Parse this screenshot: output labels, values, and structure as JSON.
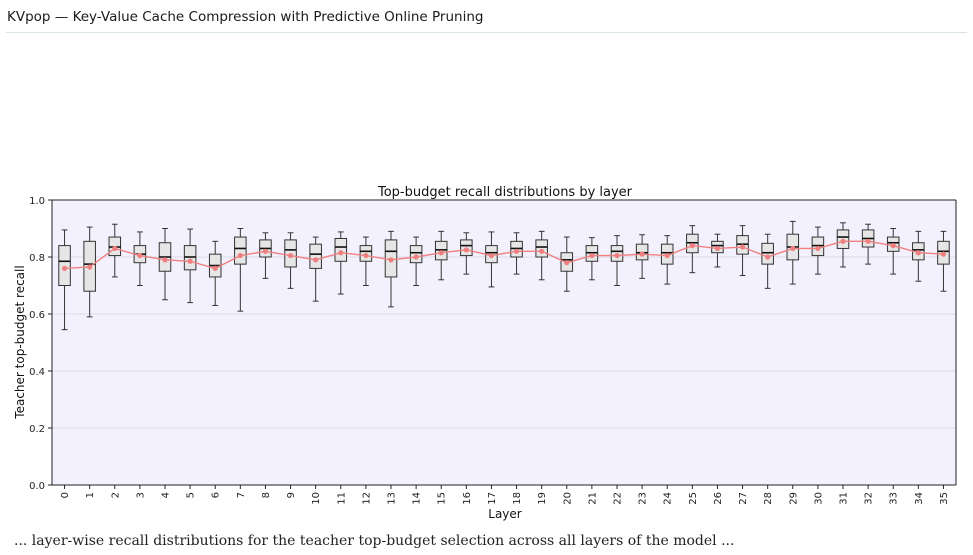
{
  "header": {
    "title": "KVpop — Key-Value Cache Compression with Predictive Online Pruning"
  },
  "footer": {
    "text": "... layer-wise recall distributions for the teacher top-budget selection across all layers of the model ..."
  },
  "colors": {
    "plot_background": "#f3f1fd",
    "box_fill": "#e6e6e6",
    "box_stroke": "#333333",
    "median": "#111111",
    "mean_line": "#f08080",
    "mean_marker": "#f08080",
    "grid": "#dddbe8"
  },
  "chart_data": {
    "type": "box",
    "title": "Top-budget recall distributions by layer",
    "xlabel": "Layer",
    "ylabel": "Teacher top-budget recall",
    "ylim": [
      0.0,
      1.0
    ],
    "yticks": [
      "0.0",
      "0.2",
      "0.4",
      "0.6",
      "0.8",
      "1.0"
    ],
    "grid": "horizontal",
    "categories": [
      "0",
      "1",
      "2",
      "3",
      "4",
      "5",
      "6",
      "7",
      "8",
      "9",
      "10",
      "11",
      "12",
      "13",
      "14",
      "15",
      "16",
      "17",
      "18",
      "19",
      "20",
      "21",
      "22",
      "23",
      "24",
      "25",
      "26",
      "27",
      "28",
      "29",
      "30",
      "31",
      "32",
      "33",
      "34",
      "35"
    ],
    "boxes": [
      {
        "whislo": 0.545,
        "q1": 0.7,
        "med": 0.785,
        "q3": 0.84,
        "whishi": 0.895,
        "mean": 0.76
      },
      {
        "whislo": 0.59,
        "q1": 0.68,
        "med": 0.775,
        "q3": 0.855,
        "whishi": 0.905,
        "mean": 0.765
      },
      {
        "whislo": 0.73,
        "q1": 0.805,
        "med": 0.835,
        "q3": 0.87,
        "whishi": 0.915,
        "mean": 0.83
      },
      {
        "whislo": 0.7,
        "q1": 0.78,
        "med": 0.81,
        "q3": 0.84,
        "whishi": 0.888,
        "mean": 0.805
      },
      {
        "whislo": 0.65,
        "q1": 0.75,
        "med": 0.8,
        "q3": 0.85,
        "whishi": 0.9,
        "mean": 0.79
      },
      {
        "whislo": 0.64,
        "q1": 0.755,
        "med": 0.8,
        "q3": 0.84,
        "whishi": 0.898,
        "mean": 0.785
      },
      {
        "whislo": 0.63,
        "q1": 0.73,
        "med": 0.77,
        "q3": 0.81,
        "whishi": 0.855,
        "mean": 0.76
      },
      {
        "whislo": 0.61,
        "q1": 0.775,
        "med": 0.83,
        "q3": 0.87,
        "whishi": 0.9,
        "mean": 0.805
      },
      {
        "whislo": 0.725,
        "q1": 0.8,
        "med": 0.83,
        "q3": 0.86,
        "whishi": 0.885,
        "mean": 0.82
      },
      {
        "whislo": 0.69,
        "q1": 0.765,
        "med": 0.825,
        "q3": 0.86,
        "whishi": 0.885,
        "mean": 0.805
      },
      {
        "whislo": 0.645,
        "q1": 0.76,
        "med": 0.81,
        "q3": 0.845,
        "whishi": 0.87,
        "mean": 0.79
      },
      {
        "whislo": 0.67,
        "q1": 0.785,
        "med": 0.835,
        "q3": 0.865,
        "whishi": 0.888,
        "mean": 0.815
      },
      {
        "whislo": 0.7,
        "q1": 0.785,
        "med": 0.82,
        "q3": 0.84,
        "whishi": 0.87,
        "mean": 0.805
      },
      {
        "whislo": 0.625,
        "q1": 0.73,
        "med": 0.82,
        "q3": 0.86,
        "whishi": 0.89,
        "mean": 0.79
      },
      {
        "whislo": 0.7,
        "q1": 0.78,
        "med": 0.815,
        "q3": 0.84,
        "whishi": 0.87,
        "mean": 0.8
      },
      {
        "whislo": 0.72,
        "q1": 0.79,
        "med": 0.825,
        "q3": 0.855,
        "whishi": 0.89,
        "mean": 0.815
      },
      {
        "whislo": 0.74,
        "q1": 0.805,
        "med": 0.84,
        "q3": 0.86,
        "whishi": 0.885,
        "mean": 0.825
      },
      {
        "whislo": 0.695,
        "q1": 0.78,
        "med": 0.815,
        "q3": 0.84,
        "whishi": 0.888,
        "mean": 0.805
      },
      {
        "whislo": 0.74,
        "q1": 0.8,
        "med": 0.83,
        "q3": 0.855,
        "whishi": 0.885,
        "mean": 0.82
      },
      {
        "whislo": 0.72,
        "q1": 0.8,
        "med": 0.835,
        "q3": 0.86,
        "whishi": 0.89,
        "mean": 0.82
      },
      {
        "whislo": 0.68,
        "q1": 0.75,
        "med": 0.79,
        "q3": 0.815,
        "whishi": 0.87,
        "mean": 0.78
      },
      {
        "whislo": 0.72,
        "q1": 0.785,
        "med": 0.815,
        "q3": 0.84,
        "whishi": 0.868,
        "mean": 0.805
      },
      {
        "whislo": 0.7,
        "q1": 0.785,
        "med": 0.82,
        "q3": 0.84,
        "whishi": 0.875,
        "mean": 0.805
      },
      {
        "whislo": 0.725,
        "q1": 0.79,
        "med": 0.815,
        "q3": 0.845,
        "whishi": 0.878,
        "mean": 0.81
      },
      {
        "whislo": 0.705,
        "q1": 0.775,
        "med": 0.815,
        "q3": 0.845,
        "whishi": 0.875,
        "mean": 0.805
      },
      {
        "whislo": 0.745,
        "q1": 0.815,
        "med": 0.85,
        "q3": 0.88,
        "whishi": 0.91,
        "mean": 0.84
      },
      {
        "whislo": 0.765,
        "q1": 0.815,
        "med": 0.84,
        "q3": 0.855,
        "whishi": 0.88,
        "mean": 0.83
      },
      {
        "whislo": 0.735,
        "q1": 0.81,
        "med": 0.845,
        "q3": 0.875,
        "whishi": 0.91,
        "mean": 0.835
      },
      {
        "whislo": 0.69,
        "q1": 0.775,
        "med": 0.815,
        "q3": 0.848,
        "whishi": 0.88,
        "mean": 0.8
      },
      {
        "whislo": 0.705,
        "q1": 0.79,
        "med": 0.835,
        "q3": 0.88,
        "whishi": 0.925,
        "mean": 0.83
      },
      {
        "whislo": 0.74,
        "q1": 0.805,
        "med": 0.84,
        "q3": 0.87,
        "whishi": 0.905,
        "mean": 0.83
      },
      {
        "whislo": 0.765,
        "q1": 0.83,
        "med": 0.87,
        "q3": 0.895,
        "whishi": 0.92,
        "mean": 0.855
      },
      {
        "whislo": 0.775,
        "q1": 0.835,
        "med": 0.865,
        "q3": 0.895,
        "whishi": 0.915,
        "mean": 0.855
      },
      {
        "whislo": 0.74,
        "q1": 0.82,
        "med": 0.85,
        "q3": 0.87,
        "whishi": 0.9,
        "mean": 0.84
      },
      {
        "whislo": 0.715,
        "q1": 0.79,
        "med": 0.825,
        "q3": 0.85,
        "whishi": 0.89,
        "mean": 0.815
      },
      {
        "whislo": 0.68,
        "q1": 0.775,
        "med": 0.82,
        "q3": 0.855,
        "whishi": 0.89,
        "mean": 0.81
      }
    ]
  }
}
